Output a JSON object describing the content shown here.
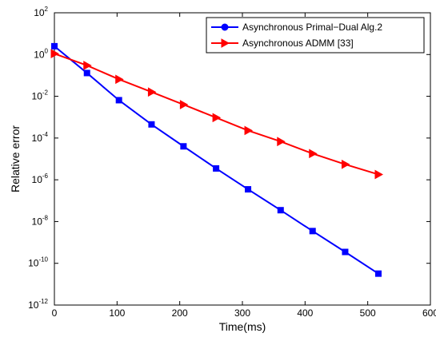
{
  "chart_data": {
    "type": "line",
    "xlabel": "Time(ms)",
    "ylabel": "Relative error",
    "xlim": [
      0,
      600
    ],
    "ylim": [
      1e-12,
      100
    ],
    "yscale": "log",
    "grid": false,
    "legend_position": "top-right",
    "x_ticks": [
      "0",
      "100",
      "200",
      "300",
      "400",
      "500",
      "600"
    ],
    "y_ticks": [
      {
        "base": "10",
        "exp": "2"
      },
      {
        "base": "10",
        "exp": "0"
      },
      {
        "base": "10",
        "exp": "-2"
      },
      {
        "base": "10",
        "exp": "-4"
      },
      {
        "base": "10",
        "exp": "-6"
      },
      {
        "base": "10",
        "exp": "-8"
      },
      {
        "base": "10",
        "exp": "-10"
      },
      {
        "base": "10",
        "exp": "-12"
      }
    ],
    "series": [
      {
        "name": "Asynchronous Primal−Dual Alg.2",
        "color": "#0000ff",
        "marker": "square",
        "legend_marker": "circle",
        "x": [
          0,
          52,
          103,
          155,
          206,
          258,
          309,
          361,
          412,
          464,
          517
        ],
        "y": [
          2.5,
          0.13,
          0.0065,
          0.00045,
          4e-05,
          3.5e-06,
          3.5e-07,
          3.5e-08,
          3.5e-09,
          3.5e-10,
          3.2e-11
        ]
      },
      {
        "name": "Asynchronous ADMM [33]",
        "color": "#ff0000",
        "marker": "triangle-right",
        "legend_marker": "triangle-right",
        "x": [
          0,
          52,
          103,
          155,
          206,
          258,
          309,
          361,
          412,
          464,
          517
        ],
        "y": [
          1.1,
          0.3,
          0.065,
          0.016,
          0.004,
          0.00095,
          0.00023,
          6.8e-05,
          1.8e-05,
          5.5e-06,
          1.8e-06
        ]
      }
    ]
  }
}
